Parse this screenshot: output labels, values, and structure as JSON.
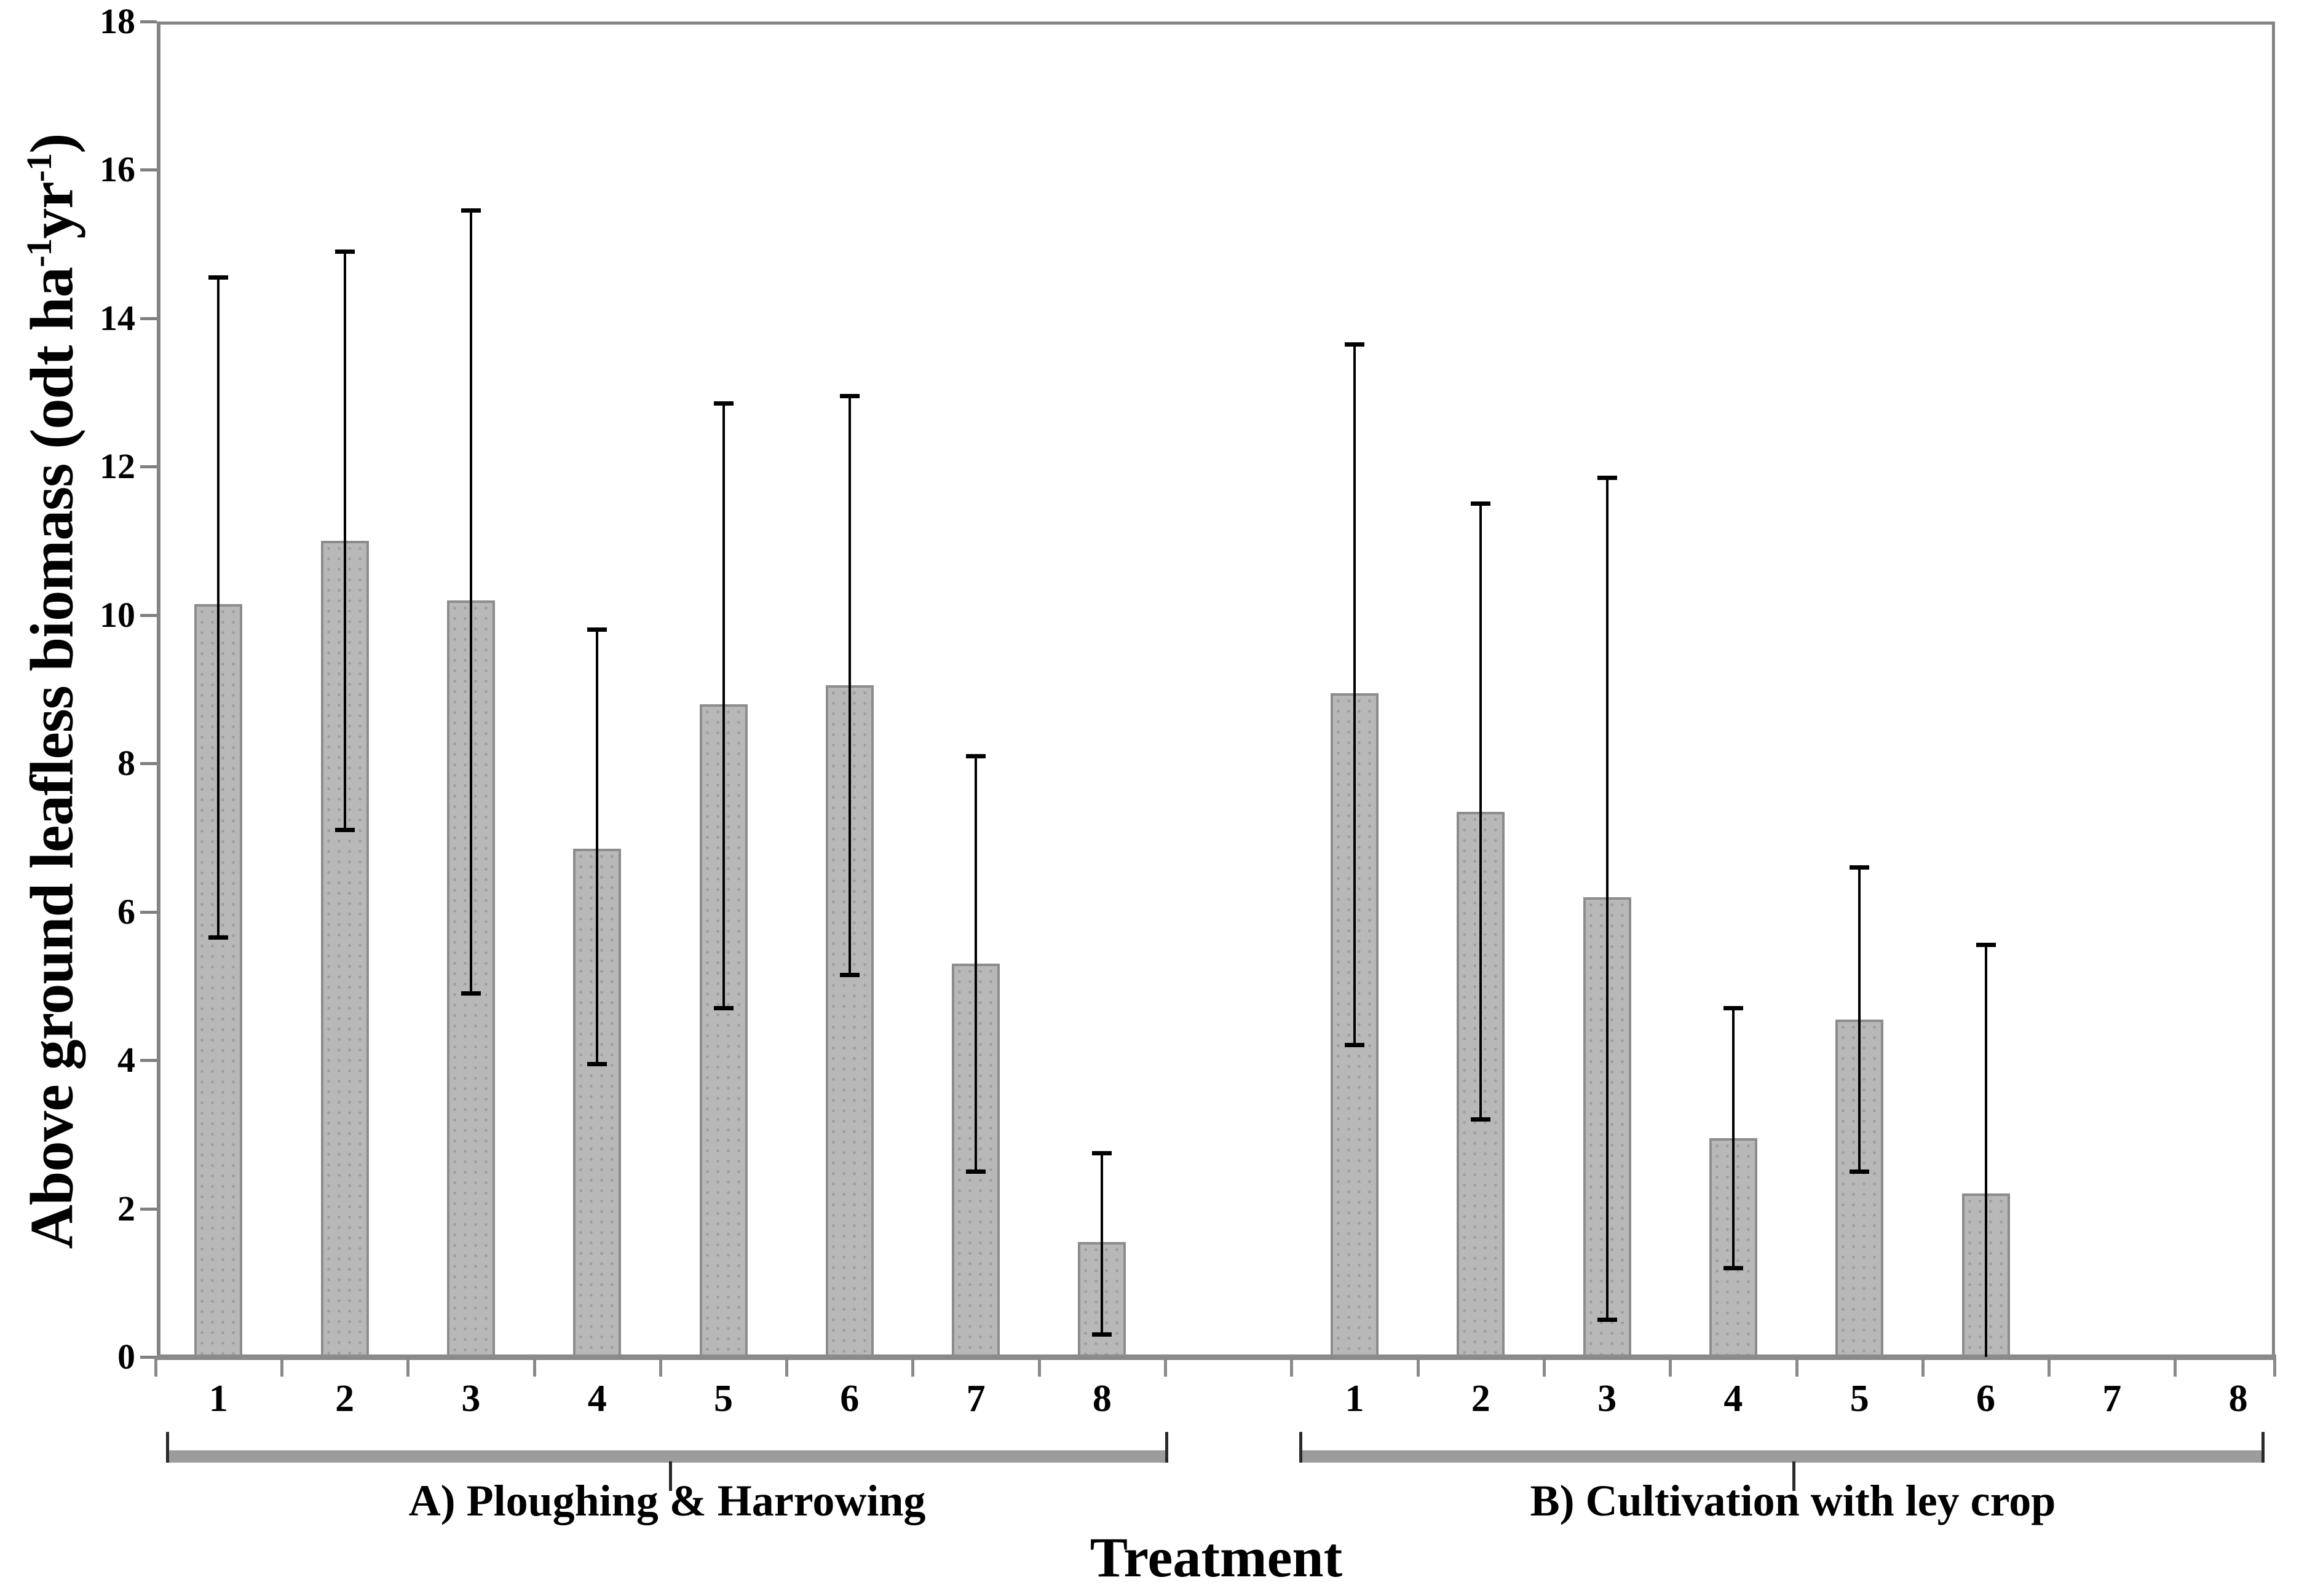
{
  "figure": {
    "y_label": {
      "prefix": "Above ground leafless biomass (odt ha",
      "sup1": "-1",
      "mid": "yr",
      "sup2": "-1",
      "suffix": ")"
    },
    "colors": {
      "bar_fill": "#b8b8b8",
      "bar_border": "#8c8c8c",
      "axis": "#848484",
      "error_bar": "#000000",
      "text": "#000000"
    }
  },
  "chart_data": {
    "type": "bar",
    "title": "",
    "xlabel": "Treatment",
    "ylabel": "Above ground leafless biomass (odt ha-1 yr-1)",
    "ylim": [
      0,
      18
    ],
    "yticks": [
      0,
      2,
      4,
      6,
      8,
      10,
      12,
      14,
      16,
      18
    ],
    "grid": false,
    "legend": "none",
    "categories": [
      "1",
      "2",
      "3",
      "4",
      "5",
      "6",
      "7",
      "8"
    ],
    "series": [
      {
        "name": "A) Ploughing & Harrowing",
        "values": [
          10.15,
          11.0,
          10.2,
          6.85,
          8.8,
          9.05,
          5.3,
          1.55
        ],
        "error_high": [
          14.55,
          14.9,
          15.45,
          9.8,
          12.85,
          12.95,
          8.1,
          2.75
        ],
        "error_low": [
          5.65,
          7.1,
          4.9,
          3.95,
          4.7,
          5.15,
          2.5,
          0.3
        ],
        "error_low_clipped": [
          false,
          false,
          false,
          false,
          false,
          false,
          false,
          false
        ]
      },
      {
        "name": "B) Cultivation with ley crop",
        "values": [
          8.95,
          7.35,
          6.2,
          2.95,
          4.55,
          2.2,
          null,
          null
        ],
        "error_high": [
          13.65,
          11.5,
          11.85,
          4.7,
          6.6,
          5.55,
          null,
          null
        ],
        "error_low": [
          4.2,
          3.2,
          0.5,
          1.2,
          2.5,
          0.0,
          null,
          null
        ],
        "error_low_clipped": [
          false,
          false,
          false,
          false,
          false,
          true,
          false,
          false
        ]
      }
    ]
  }
}
